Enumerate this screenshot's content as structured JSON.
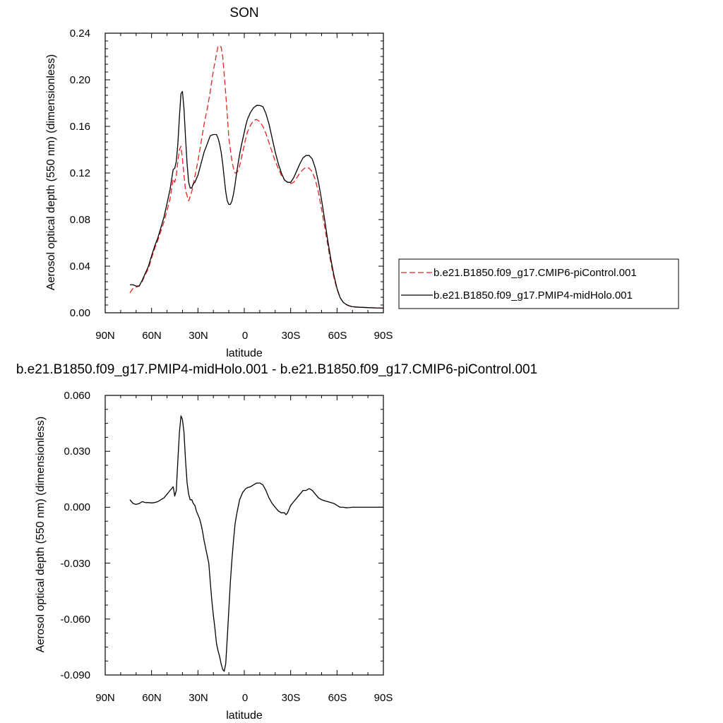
{
  "chart_data": [
    {
      "type": "line",
      "title": "SON",
      "xlabel": "latitude",
      "ylabel": "Aerosol optical depth (550 nm) (dimensionless)",
      "x_axis_reversed": true,
      "xlim": [
        90,
        -90
      ],
      "ylim": [
        0,
        0.24
      ],
      "x_ticks": [
        90,
        60,
        30,
        0,
        -30,
        -60,
        -90
      ],
      "x_tick_labels": [
        "90N",
        "60N",
        "30N",
        "0",
        "30S",
        "60S",
        "90S"
      ],
      "y_ticks": [
        0,
        0.04,
        0.08,
        0.12,
        0.16,
        0.2,
        0.24
      ],
      "y_tick_labels": [
        "0.00",
        "0.04",
        "0.08",
        "0.12",
        "0.16",
        "0.20",
        "0.24"
      ],
      "grid": false,
      "legend_placement": "right",
      "series": [
        {
          "name": "b.e21.B1850.f09_g17.CMIP6-piControl.001",
          "color": "#e8221e",
          "style": "dashed",
          "x": [
            74,
            72,
            70,
            68,
            66,
            64,
            62,
            60,
            58,
            56,
            54,
            52,
            50,
            48,
            46,
            45,
            44,
            43,
            42,
            41,
            40,
            39,
            38,
            36,
            35,
            34,
            33,
            32,
            30,
            28,
            26,
            24,
            22,
            20,
            18,
            17,
            16,
            15,
            14,
            13,
            12,
            11,
            10,
            8,
            7,
            6,
            5,
            4,
            3,
            2,
            1,
            0,
            -1,
            -2,
            -4,
            -6,
            -8,
            -10,
            -12,
            -14,
            -16,
            -18,
            -20,
            -22,
            -24,
            -26,
            -28,
            -30,
            -32,
            -34,
            -36,
            -38,
            -40,
            -42,
            -44,
            -46,
            -48,
            -50,
            -52,
            -54,
            -56,
            -58,
            -60,
            -62,
            -64,
            -66,
            -68,
            -70,
            -72,
            -75,
            -80,
            -85,
            -90
          ],
          "y": [
            0.017,
            0.021,
            0.022,
            0.023,
            0.027,
            0.033,
            0.038,
            0.047,
            0.055,
            0.062,
            0.07,
            0.078,
            0.088,
            0.098,
            0.115,
            0.112,
            0.118,
            0.13,
            0.14,
            0.143,
            0.132,
            0.118,
            0.105,
            0.096,
            0.1,
            0.104,
            0.11,
            0.117,
            0.13,
            0.146,
            0.162,
            0.175,
            0.19,
            0.208,
            0.222,
            0.229,
            0.229,
            0.228,
            0.22,
            0.205,
            0.188,
            0.17,
            0.15,
            0.13,
            0.124,
            0.12,
            0.12,
            0.122,
            0.126,
            0.132,
            0.138,
            0.144,
            0.15,
            0.155,
            0.161,
            0.165,
            0.166,
            0.164,
            0.16,
            0.154,
            0.146,
            0.138,
            0.13,
            0.124,
            0.118,
            0.114,
            0.112,
            0.111,
            0.112,
            0.116,
            0.12,
            0.123,
            0.125,
            0.124,
            0.121,
            0.114,
            0.103,
            0.089,
            0.074,
            0.058,
            0.043,
            0.03,
            0.02,
            0.013,
            0.009,
            0.007,
            0.006,
            0.0055,
            0.005,
            0.0048,
            0.0045,
            0.0042,
            0.004
          ]
        },
        {
          "name": "b.e21.B1850.f09_g17.PMIP4-midHolo.001",
          "color": "#000000",
          "style": "solid",
          "x": [
            74,
            72,
            70,
            68,
            66,
            64,
            62,
            60,
            58,
            56,
            54,
            52,
            50,
            48,
            46,
            45,
            44,
            43,
            42,
            41,
            40,
            39,
            38,
            37,
            36,
            35,
            34,
            33,
            32,
            30,
            28,
            26,
            24,
            22,
            20,
            18,
            17,
            16,
            15,
            14,
            13,
            12,
            11,
            10,
            9,
            8,
            7,
            6,
            5,
            4,
            3,
            2,
            1,
            0,
            -1,
            -2,
            -4,
            -6,
            -8,
            -10,
            -12,
            -14,
            -16,
            -18,
            -20,
            -22,
            -24,
            -26,
            -28,
            -30,
            -32,
            -34,
            -36,
            -38,
            -40,
            -42,
            -44,
            -46,
            -48,
            -50,
            -52,
            -54,
            -56,
            -58,
            -60,
            -62,
            -64,
            -66,
            -68,
            -70,
            -72,
            -75,
            -80,
            -85,
            -90
          ],
          "y": [
            0.024,
            0.024,
            0.023,
            0.023,
            0.028,
            0.034,
            0.04,
            0.049,
            0.057,
            0.064,
            0.073,
            0.082,
            0.094,
            0.106,
            0.123,
            0.124,
            0.13,
            0.145,
            0.168,
            0.188,
            0.19,
            0.175,
            0.15,
            0.128,
            0.112,
            0.107,
            0.107,
            0.111,
            0.112,
            0.118,
            0.128,
            0.138,
            0.145,
            0.152,
            0.153,
            0.153,
            0.15,
            0.145,
            0.138,
            0.128,
            0.116,
            0.104,
            0.096,
            0.093,
            0.093,
            0.096,
            0.102,
            0.11,
            0.12,
            0.128,
            0.136,
            0.143,
            0.149,
            0.155,
            0.161,
            0.166,
            0.172,
            0.176,
            0.178,
            0.178,
            0.177,
            0.171,
            0.162,
            0.15,
            0.138,
            0.128,
            0.12,
            0.114,
            0.112,
            0.112,
            0.116,
            0.122,
            0.128,
            0.133,
            0.135,
            0.135,
            0.132,
            0.124,
            0.112,
            0.097,
            0.08,
            0.062,
            0.046,
            0.032,
            0.021,
            0.013,
            0.009,
            0.007,
            0.0058,
            0.0052,
            0.005,
            0.0047,
            0.0044,
            0.0042,
            0.004
          ]
        }
      ]
    },
    {
      "type": "line",
      "title": "b.e21.B1850.f09_g17.PMIP4-midHolo.001 - b.e21.B1850.f09_g17.CMIP6-piControl.001",
      "xlabel": "latitude",
      "ylabel": "Aerosol optical depth (550 nm) (dimensionless)",
      "x_axis_reversed": true,
      "xlim": [
        90,
        -90
      ],
      "ylim": [
        -0.09,
        0.06
      ],
      "x_ticks": [
        90,
        60,
        30,
        0,
        -30,
        -60,
        -90
      ],
      "x_tick_labels": [
        "90N",
        "60N",
        "30N",
        "0",
        "30S",
        "60S",
        "90S"
      ],
      "y_ticks": [
        -0.09,
        -0.06,
        -0.03,
        0,
        0.03,
        0.06
      ],
      "y_tick_labels": [
        "-0.090",
        "-0.060",
        "-0.030",
        "0.000",
        "0.030",
        "0.060"
      ],
      "grid": false,
      "series": [
        {
          "color": "#000000",
          "style": "solid",
          "x": [
            74,
            72,
            70,
            68,
            66,
            64,
            62,
            60,
            58,
            56,
            54,
            52,
            50,
            48,
            46,
            45,
            44,
            43,
            42,
            41,
            40,
            39,
            38,
            37,
            36,
            35,
            34,
            33,
            32,
            31,
            30,
            29,
            28,
            27,
            26,
            25,
            24,
            23,
            22,
            21,
            20,
            19,
            18,
            17,
            16,
            15,
            14,
            13,
            12,
            11,
            10,
            9,
            8,
            7,
            6,
            5,
            4,
            3,
            2,
            1,
            0,
            -1,
            -2,
            -4,
            -6,
            -8,
            -10,
            -12,
            -14,
            -16,
            -18,
            -20,
            -22,
            -24,
            -26,
            -27,
            -28,
            -30,
            -32,
            -34,
            -36,
            -38,
            -40,
            -42,
            -44,
            -46,
            -48,
            -50,
            -52,
            -54,
            -56,
            -58,
            -60,
            -62,
            -64,
            -66,
            -68,
            -70,
            -75,
            -80,
            -85,
            -90
          ],
          "y": [
            0.004,
            0.002,
            0.0015,
            0.002,
            0.003,
            0.0025,
            0.0025,
            0.0023,
            0.0025,
            0.003,
            0.004,
            0.005,
            0.007,
            0.009,
            0.011,
            0.006,
            0.009,
            0.025,
            0.04,
            0.049,
            0.047,
            0.04,
            0.025,
            0.013,
            0.007,
            0.004,
            0.004,
            0.002,
            0.001,
            -0.002,
            -0.004,
            -0.006,
            -0.009,
            -0.013,
            -0.018,
            -0.022,
            -0.026,
            -0.03,
            -0.04,
            -0.05,
            -0.058,
            -0.065,
            -0.073,
            -0.077,
            -0.08,
            -0.084,
            -0.087,
            -0.088,
            -0.084,
            -0.07,
            -0.055,
            -0.04,
            -0.028,
            -0.018,
            -0.009,
            -0.004,
            0.0,
            0.004,
            0.006,
            0.008,
            0.009,
            0.01,
            0.0105,
            0.011,
            0.012,
            0.013,
            0.013,
            0.012,
            0.009,
            0.005,
            0.002,
            0.0,
            -0.002,
            -0.003,
            -0.003,
            -0.004,
            -0.003,
            0.001,
            0.003,
            0.005,
            0.007,
            0.009,
            0.009,
            0.01,
            0.009,
            0.007,
            0.005,
            0.004,
            0.0035,
            0.003,
            0.0025,
            0.002,
            0.001,
            0.0,
            0.0,
            -0.0003,
            -0.0002,
            0.0,
            0.0,
            0.0,
            0.0,
            0.0
          ]
        }
      ]
    }
  ]
}
